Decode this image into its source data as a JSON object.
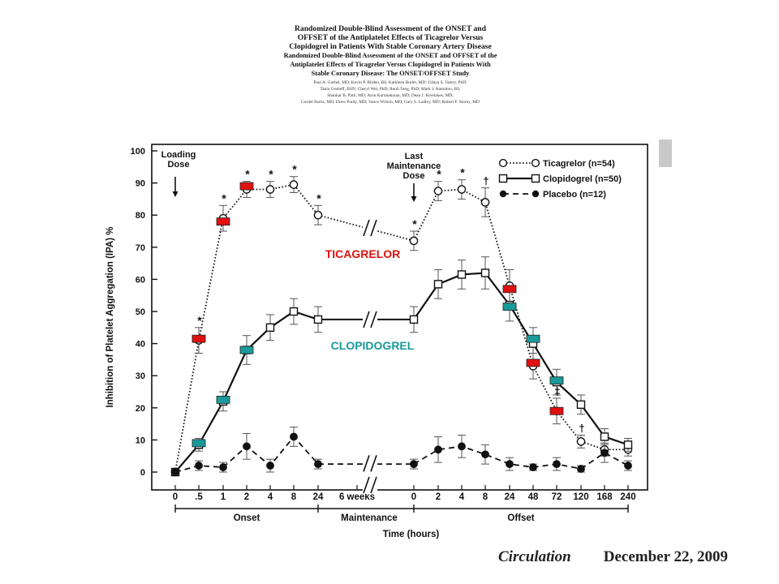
{
  "header": {
    "title_line1": "Randomized Double-Blind Assessment of the ONSET and",
    "title_line2": "OFFSET of the Antiplatelet Effects of Ticagrelor Versus",
    "title_line3": "Clopidogrel in Patients With Stable Coronary Artery Disease",
    "subtitle_line1": "Randomized Double-Blind Assessment of the ONSET and OFFSET of the",
    "subtitle_line2": "Antiplatelet Effects of Ticagrelor Versus Clopidogrel in Patients With",
    "subtitle_line3": "Stable Coronary Disease: The ONSET/OFFSET Study",
    "authors_line1": "Paul A. Gurbel, MD; Kevin P. Bliden, BS; Kathleen Butler, MD; Udaya S. Tantry, PhD;",
    "authors_line2": "Tania Gesheff, BSN; Cheryl Wei, PhD; Renli Teng, PhD; Mark J. Antonino, BS;",
    "authors_line3": "Shankar B. Patil, MD; Arun Karunakaran, MD; Dean J. Kereiakes, MD;",
    "authors_line4": "Cordel Parris, MD; Drew Purdy, MD; Vance Wilson, MD; Gary S. Ladley, MD; Robert F. Storey, MD"
  },
  "chart_data": {
    "type": "line",
    "ylabel": "Inhibition of Platelet Aggregation (IPA) %",
    "xlabel": "Time (hours)",
    "ylim": [
      0,
      100
    ],
    "yticks": [
      0,
      10,
      20,
      30,
      40,
      50,
      60,
      70,
      80,
      90,
      100
    ],
    "categories": [
      "0",
      ".5",
      "1",
      "2",
      "4",
      "8",
      "24",
      "6 weeks",
      "0",
      "2",
      "4",
      "8",
      "24",
      "48",
      "72",
      "120",
      "168",
      "240"
    ],
    "phases": [
      "Onset",
      "Maintenance",
      "Offset"
    ],
    "grid": false,
    "legend_position": "top-right",
    "series": [
      {
        "name": "Ticagrelor (n=54)",
        "color": "#111111",
        "style": "dotted",
        "marker": "open-circle",
        "values": [
          0,
          41,
          79,
          88,
          88,
          89.5,
          80,
          null,
          72,
          87.5,
          88,
          84,
          58,
          33,
          19,
          9.5,
          7,
          7
        ],
        "errors": [
          0,
          4,
          4,
          2.5,
          2.5,
          2.5,
          3,
          null,
          3,
          3,
          3,
          4.5,
          5,
          4,
          4,
          2,
          2,
          2
        ]
      },
      {
        "name": "Clopidogrel (n=50)",
        "color": "#111111",
        "style": "solid",
        "marker": "open-square",
        "values": [
          0,
          8.5,
          22,
          38,
          45,
          50,
          47.5,
          null,
          47.5,
          58.5,
          61.5,
          62,
          52,
          40,
          28,
          21,
          11,
          8.5
        ],
        "errors": [
          0,
          2,
          3,
          4.5,
          4,
          4,
          4,
          null,
          4,
          4.5,
          4.5,
          5,
          5,
          5,
          4,
          3,
          2.5,
          2
        ]
      },
      {
        "name": "Placebo (n=12)",
        "color": "#111111",
        "style": "dashed",
        "marker": "filled-circle",
        "values": [
          0,
          2,
          1.5,
          8,
          2,
          11,
          2.5,
          null,
          2.5,
          7,
          8,
          5.5,
          2.5,
          1.5,
          2.5,
          1,
          6,
          2
        ],
        "errors": [
          0,
          1.5,
          1.5,
          4,
          2,
          3,
          1.5,
          null,
          1.5,
          4,
          3.5,
          3,
          2,
          1,
          2,
          1,
          3,
          1.5
        ]
      }
    ],
    "dose_annotations": [
      {
        "label_line1": "Loading",
        "label_line2": "Dose",
        "at_index": 0
      },
      {
        "label_line1": "Last",
        "label_line2": "Maintenance",
        "label_line3": "Dose",
        "at_index": 8
      }
    ],
    "significance_marks": [
      {
        "symbol": "*",
        "at_index": 1
      },
      {
        "symbol": "*",
        "at_index": 2
      },
      {
        "symbol": "*",
        "at_index": 3
      },
      {
        "symbol": "*",
        "at_index": 4
      },
      {
        "symbol": "*",
        "at_index": 5
      },
      {
        "symbol": "*",
        "at_index": 6
      },
      {
        "symbol": "*",
        "at_index": 8
      },
      {
        "symbol": "*",
        "at_index": 9
      },
      {
        "symbol": "*",
        "at_index": 10
      },
      {
        "symbol": "†",
        "at_index": 11
      },
      {
        "symbol": "‡",
        "at_index": 14
      },
      {
        "symbol": "†",
        "at_index": 15
      }
    ],
    "overlay_labels": {
      "ticagrelor": "TICAGRELOR",
      "clopidogrel": "CLOPIDOGREL"
    },
    "overlay_colors": {
      "ticagrelor": "#e01010",
      "clopidogrel": "#1a9a9a"
    },
    "red_markers": [
      {
        "at_index": 1,
        "value": 41.5
      },
      {
        "at_index": 2,
        "value": 78
      },
      {
        "at_index": 3,
        "value": 89
      },
      {
        "at_index": 12,
        "value": 57
      },
      {
        "at_index": 13,
        "value": 34
      },
      {
        "at_index": 14,
        "value": 19
      }
    ],
    "teal_markers": [
      {
        "at_index": 1,
        "value": 9
      },
      {
        "at_index": 2,
        "value": 22.5
      },
      {
        "at_index": 3,
        "value": 38
      },
      {
        "at_index": 12,
        "value": 51.5
      },
      {
        "at_index": 13,
        "value": 41.5
      },
      {
        "at_index": 14,
        "value": 28.5
      }
    ]
  },
  "footer": {
    "journal": "Circulation",
    "date": "December 22, 2009"
  }
}
